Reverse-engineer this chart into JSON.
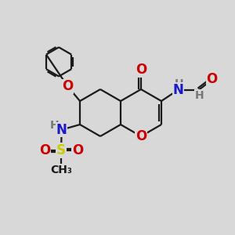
{
  "bg_color": "#d8d8d8",
  "bond_color": "#1a1a1a",
  "bond_width": 1.6,
  "atom_colors": {
    "O": "#cc0000",
    "N": "#1a1acc",
    "S": "#cccc00",
    "H": "#777777",
    "C": "#1a1a1a"
  },
  "ring_r": 1.0,
  "ph_r": 0.62
}
